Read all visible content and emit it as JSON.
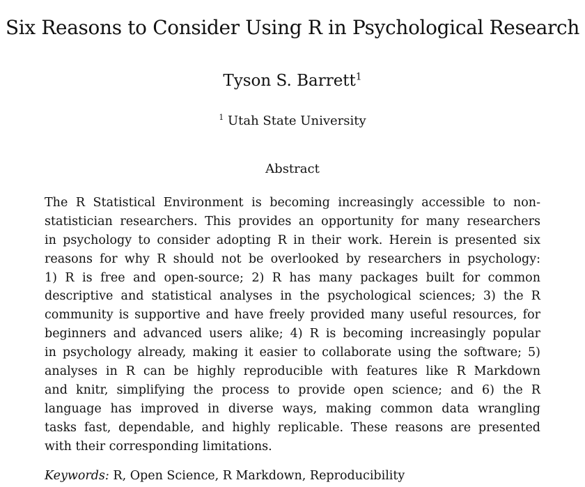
{
  "paper": {
    "title": "Six Reasons to Consider Using R in Psychological Research",
    "author": {
      "name": "Tyson S. Barrett",
      "affiliation_mark": "1"
    },
    "affiliation": {
      "mark": "1",
      "name": "Utah State University"
    },
    "abstract": {
      "heading": "Abstract",
      "lines": [
        "The R Statistical Environment is becoming increasingly accessible to non-",
        "statistician researchers. This provides an opportunity for many researchers",
        "in psychology to consider adopting R in their work. Herein is presented six",
        "reasons for why R should not be overlooked by researchers in psychology:",
        "1) R is free and open-source; 2) R has many packages built for common",
        "descriptive and statistical analyses in the psychological sciences; 3) the R",
        "community is supportive and have freely provided many useful resources, for",
        "beginners and advanced users alike; 4) R is becoming increasingly popular",
        "in psychology already, making it easier to collaborate using the software; 5)",
        "analyses in R can be highly reproducible with features like R Markdown",
        "and knitr, simplifying the process to provide open science; and 6) the R",
        "language has improved in diverse ways, making common data wrangling",
        "tasks fast, dependable, and highly replicable. These reasons are presented",
        "with their corresponding limitations."
      ]
    },
    "keywords": {
      "label": "Keywords:",
      "value": "R, Open Science, R Markdown, Reproducibility"
    }
  }
}
